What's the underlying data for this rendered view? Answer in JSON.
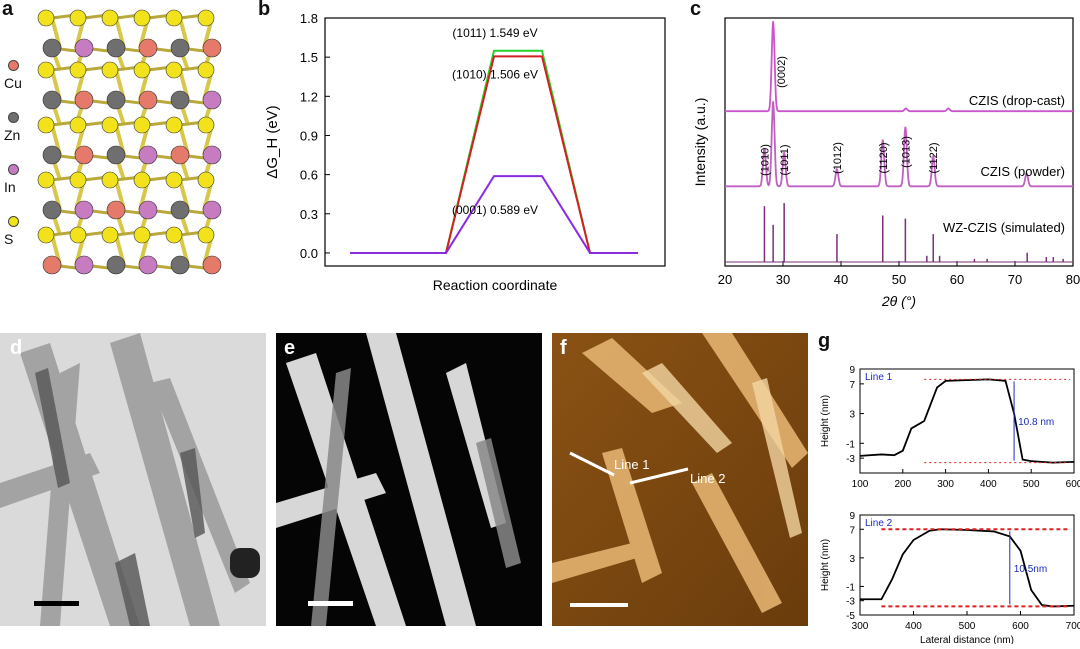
{
  "panel_labels": {
    "a": "a",
    "b": "b",
    "c": "c",
    "d": "d",
    "e": "e",
    "f": "f",
    "g": "g"
  },
  "crystal_legend": [
    {
      "label": "Cu",
      "color": "#e57a6a"
    },
    {
      "label": "Zn",
      "color": "#6f6f6f"
    },
    {
      "label": "In",
      "color": "#c77bc0"
    },
    {
      "label": "S",
      "color": "#f2e21b"
    }
  ],
  "chart_data": [
    {
      "id": "b",
      "type": "line",
      "xlabel": "Reaction coordinate",
      "ylabel": "ΔG_H (eV)",
      "ylim": [
        -0.1,
        1.8
      ],
      "yticks": [
        "0.0",
        "0.3",
        "0.6",
        "0.9",
        "1.2",
        "1.5",
        "1.8"
      ],
      "x": [
        0,
        1,
        2,
        3,
        4,
        5,
        6
      ],
      "series": [
        {
          "name": "(1011) 1.549 eV",
          "color": "#2ad12a",
          "values": [
            0,
            0,
            0,
            1.549,
            1.549,
            0,
            0
          ]
        },
        {
          "name": "(1010) 1.506 eV",
          "color": "#d42020",
          "values": [
            0,
            0,
            0,
            1.506,
            1.506,
            0,
            0
          ]
        },
        {
          "name": "(0001) 0.589 eV",
          "color": "#8a2be2",
          "values": [
            0,
            0,
            0,
            0.589,
            0.589,
            0,
            0
          ]
        }
      ]
    },
    {
      "id": "c",
      "type": "line",
      "xlabel": "2θ (°)",
      "ylabel": "Intensity (a.u.)",
      "xlim": [
        20,
        80
      ],
      "xticks": [
        "20",
        "30",
        "40",
        "50",
        "60",
        "70",
        "80"
      ],
      "series": [
        {
          "name": "CZIS (drop-cast)",
          "peaks": [
            [
              28.3,
              1.0
            ],
            [
              51.2,
              0.03
            ],
            [
              58.5,
              0.03
            ]
          ]
        },
        {
          "name": "CZIS (powder)",
          "peaks": [
            [
              26.8,
              0.45
            ],
            [
              28.3,
              1.0
            ],
            [
              30.2,
              0.4
            ],
            [
              39.3,
              0.2
            ],
            [
              47.2,
              0.55
            ],
            [
              51.1,
              0.7
            ],
            [
              55.9,
              0.35
            ],
            [
              72.0,
              0.15
            ]
          ]
        },
        {
          "name": "WZ-CZIS (simulated)",
          "peaks": [
            [
              26.8,
              0.9
            ],
            [
              28.3,
              0.6
            ],
            [
              30.2,
              0.95
            ],
            [
              39.3,
              0.45
            ],
            [
              47.2,
              0.75
            ],
            [
              51.1,
              0.7
            ],
            [
              54.8,
              0.1
            ],
            [
              55.9,
              0.45
            ],
            [
              57.0,
              0.1
            ],
            [
              63.0,
              0.05
            ],
            [
              65.2,
              0.05
            ],
            [
              72.1,
              0.15
            ],
            [
              75.4,
              0.08
            ],
            [
              76.6,
              0.08
            ],
            [
              78.3,
              0.05
            ]
          ]
        }
      ],
      "annotations": [
        "(0002)",
        "(1010)",
        "(1011)",
        "(1012)",
        "(1120)",
        "(1013)",
        "(1122)"
      ]
    },
    {
      "id": "g-line1",
      "type": "line",
      "ylabel": "Height (nm)",
      "xlim": [
        100,
        600
      ],
      "ylim": [
        -5,
        9
      ],
      "xticks": [
        "100",
        "200",
        "300",
        "400",
        "500",
        "600"
      ],
      "yticks": [
        "9",
        "7",
        "3",
        "-1",
        "-3"
      ],
      "legend": "Line 1",
      "step_label": "10.8 nm",
      "x": [
        100,
        150,
        180,
        200,
        220,
        250,
        280,
        300,
        350,
        400,
        440,
        460,
        480,
        500,
        550,
        600
      ],
      "values": [
        -2.7,
        -2.5,
        -2.6,
        -2.0,
        1.0,
        2.0,
        6.5,
        7.4,
        7.5,
        7.6,
        7.4,
        3.0,
        -3.2,
        -3.4,
        -3.6,
        -3.5
      ]
    },
    {
      "id": "g-line2",
      "type": "line",
      "ylabel": "Height (nm)",
      "xlabel": "Lateral distance (nm)",
      "xlim": [
        300,
        700
      ],
      "ylim": [
        -5,
        9
      ],
      "xticks": [
        "300",
        "400",
        "500",
        "600",
        "700"
      ],
      "yticks": [
        "9",
        "7",
        "3",
        "-1",
        "-3",
        "-5"
      ],
      "legend": "Line 2",
      "step_label": "10.5nm",
      "x": [
        300,
        340,
        360,
        380,
        400,
        430,
        450,
        500,
        550,
        580,
        600,
        620,
        640,
        660,
        700
      ],
      "values": [
        -2.8,
        -2.8,
        0,
        3.5,
        5.5,
        6.8,
        7.0,
        6.9,
        6.7,
        6.0,
        4.0,
        -1.5,
        -3.6,
        -3.8,
        -3.7
      ]
    }
  ],
  "afm_lines": {
    "line1": "Line 1",
    "line2": "Line 2"
  }
}
